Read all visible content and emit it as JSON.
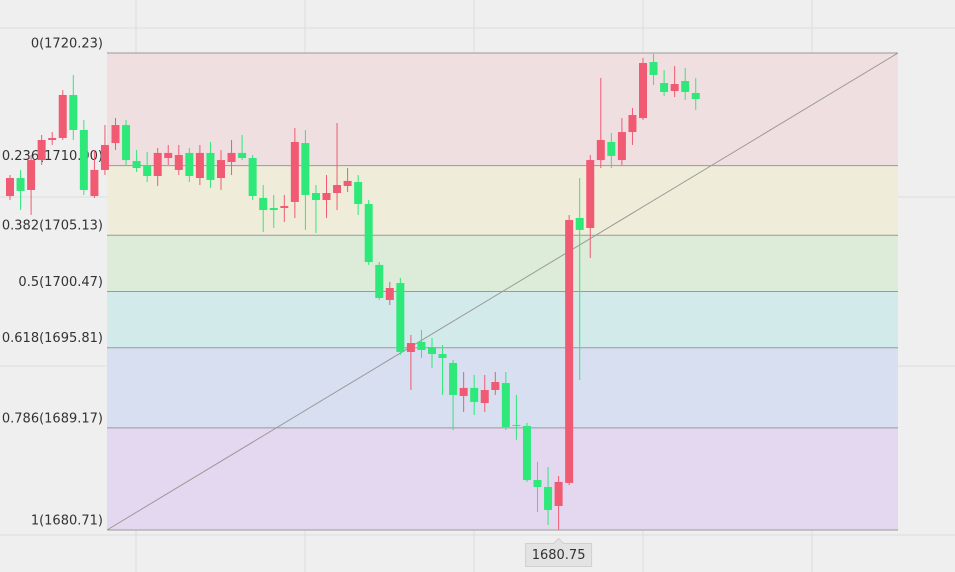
{
  "chart_data": {
    "type": "candlestick",
    "ylim": [
      1677.23,
      1724.62
    ],
    "yticks": [
      {
        "value": 1720.23,
        "label": "0(1720.23)"
      },
      {
        "value": 1710.9,
        "label": "0.236(1710.90)"
      },
      {
        "value": 1705.13,
        "label": "0.382(1705.13)"
      },
      {
        "value": 1700.47,
        "label": "0.5(1700.47)"
      },
      {
        "value": 1695.81,
        "label": "0.618(1695.81)"
      },
      {
        "value": 1689.17,
        "label": "0.786(1689.17)"
      },
      {
        "value": 1680.71,
        "label": "1(1680.71)"
      }
    ],
    "band_colors": [
      "#f0dfe0",
      "#efedd9",
      "#dcecd8",
      "#d3eaea",
      "#d7dff0",
      "#e3d8f0"
    ],
    "up_color": "#f05a72",
    "down_color": "#2ee87a",
    "low_marker": 1680.75,
    "open": [
      1708.38,
      1709.87,
      1708.88,
      1711.36,
      1713.02,
      1713.19,
      1716.75,
      1713.85,
      1708.38,
      1710.54,
      1712.77,
      1714.26,
      1711.28,
      1710.95,
      1710.04,
      1711.53,
      1710.54,
      1711.95,
      1709.87,
      1711.95,
      1709.87,
      1711.2,
      1711.95,
      1711.53,
      1708.22,
      1707.39,
      1707.39,
      1707.89,
      1712.77,
      1708.63,
      1708.05,
      1708.63,
      1709.21,
      1709.54,
      1707.72,
      1702.67,
      1699.77,
      1701.17,
      1695.46,
      1696.29,
      1695.87,
      1695.29,
      1694.55,
      1691.81,
      1692.48,
      1691.23,
      1692.31,
      1692.89,
      1689.41,
      1689.33,
      1684.85,
      1684.27,
      1682.7,
      1684.61,
      1706.56,
      1705.73,
      1711.36,
      1712.86,
      1711.36,
      1713.68,
      1714.84,
      1719.48,
      1717.74,
      1717.08,
      1717.91,
      1716.92
    ],
    "high": [
      1710.12,
      1710.54,
      1711.78,
      1713.44,
      1713.68,
      1717.16,
      1718.41,
      1714.68,
      1712.19,
      1714.26,
      1714.84,
      1714.68,
      1712.19,
      1712.03,
      1712.36,
      1712.61,
      1712.61,
      1712.36,
      1712.61,
      1712.86,
      1712.19,
      1713.02,
      1713.44,
      1711.78,
      1709.29,
      1708.47,
      1708.47,
      1714.02,
      1713.85,
      1709.29,
      1710.12,
      1714.43,
      1710.7,
      1710.12,
      1708.05,
      1702.91,
      1701.26,
      1701.59,
      1696.87,
      1697.28,
      1696.62,
      1696.04,
      1694.8,
      1693.8,
      1693.55,
      1693.55,
      1693.8,
      1693.8,
      1691.9,
      1689.58,
      1686.35,
      1685.93,
      1685.19,
      1706.81,
      1709.87,
      1711.78,
      1718.16,
      1713.6,
      1714.84,
      1715.67,
      1719.82,
      1720.15,
      1718.82,
      1719.15,
      1718.99,
      1718.16
    ],
    "low": [
      1708.05,
      1707.22,
      1706.81,
      1710.95,
      1712.61,
      1713.02,
      1713.02,
      1708.47,
      1708.22,
      1710.12,
      1712.19,
      1710.95,
      1710.37,
      1709.54,
      1709.21,
      1710.95,
      1710.12,
      1709.54,
      1709.29,
      1709.05,
      1708.88,
      1710.12,
      1711.36,
      1708.05,
      1705.4,
      1705.73,
      1706.23,
      1706.56,
      1705.57,
      1705.32,
      1706.56,
      1707.22,
      1708.71,
      1706.81,
      1702.67,
      1699.77,
      1699.35,
      1695.21,
      1692.31,
      1694.96,
      1694.13,
      1691.9,
      1688.99,
      1690.49,
      1690.24,
      1690.49,
      1691.9,
      1688.99,
      1688.17,
      1684.69,
      1682.2,
      1681.12,
      1680.75,
      1684.44,
      1693.14,
      1703.24,
      1710.7,
      1710.7,
      1710.95,
      1712.61,
      1714.68,
      1717.58,
      1716.67,
      1716.58,
      1716.34,
      1715.51
    ],
    "close": [
      1709.87,
      1708.8,
      1711.36,
      1713.02,
      1713.19,
      1716.75,
      1713.85,
      1708.88,
      1710.54,
      1712.61,
      1714.26,
      1711.36,
      1710.7,
      1710.04,
      1711.95,
      1711.95,
      1711.78,
      1710.04,
      1711.95,
      1709.71,
      1711.36,
      1711.95,
      1711.53,
      1708.38,
      1707.22,
      1707.22,
      1707.55,
      1712.86,
      1708.47,
      1708.05,
      1708.63,
      1709.29,
      1709.63,
      1707.72,
      1702.91,
      1699.93,
      1700.76,
      1695.46,
      1696.2,
      1695.62,
      1695.29,
      1694.96,
      1691.9,
      1692.48,
      1691.32,
      1692.31,
      1692.97,
      1689.24,
      1689.33,
      1684.85,
      1684.27,
      1682.37,
      1684.69,
      1706.39,
      1705.57,
      1711.36,
      1713.02,
      1711.7,
      1713.68,
      1715.09,
      1719.4,
      1718.41,
      1717.0,
      1717.66,
      1717.0,
      1716.42
    ]
  }
}
